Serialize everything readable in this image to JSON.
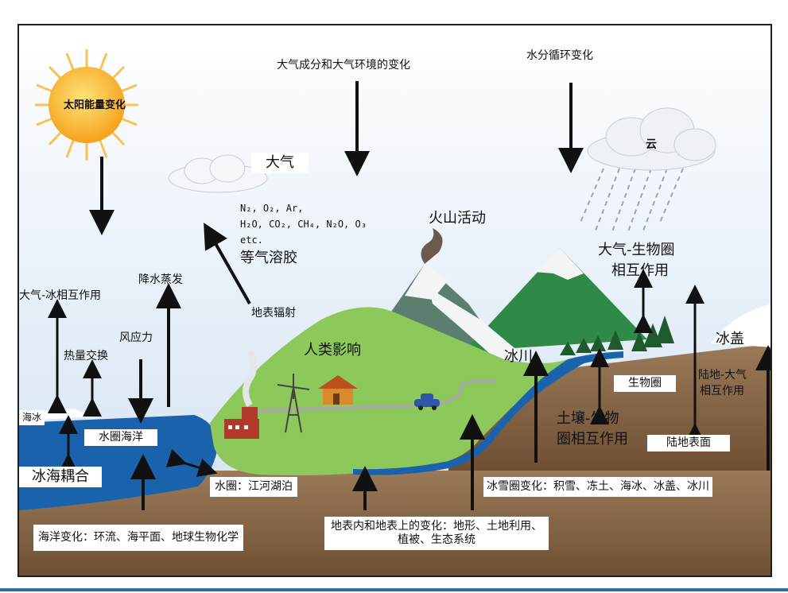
{
  "labels": {
    "sun": "太阳能量变化",
    "atmos_change": "大气成分和大气环境的变化",
    "water_cycle": "水分循环变化",
    "cloud": "云",
    "atmosphere": "大气",
    "gases_line1": "N₂, O₂, Ar,",
    "gases_line2": "H₂O, CO₂, CH₄, N₂O, O₃",
    "gases_line3": "etc.",
    "aerosol": "等气溶胶",
    "volcano": "火山活动",
    "atmos_bio_1": "大气-生物圈",
    "atmos_bio_2": "相互作用",
    "atmos_ice": "大气-冰相互作用",
    "precip": "降水蒸发",
    "surface_rad": "地表辐射",
    "wind": "风应力",
    "heat": "热量交换",
    "human": "人类影响",
    "glacier": "冰川",
    "icecap": "冰盖",
    "biosphere": "生物圈",
    "land_atmos_1": "陆地-大气",
    "land_atmos_2": "相互作用",
    "soil_bio_1": "土壤-生物",
    "soil_bio_2": "圈相互作用",
    "land_surface": "陆地表面",
    "sea_ice": "海冰",
    "ocean": "水圈海洋",
    "ice_ocean": "冰海耦合",
    "rivers": "水圈：江河湖泊",
    "cryo_change": "冰雪圈变化：积雪、冻土、海冰、冰盖、冰川",
    "ocean_change": "海洋变化：环流、海平面、地球生物化学",
    "land_change_1": "地表内和地表上的变化：地形、土地利用、",
    "land_change_2": "植被、生态系统"
  },
  "colors": {
    "sky": "#dbe8f5",
    "ocean": "#1b62ad",
    "land_green": "#8cc85a",
    "soil": "#8c6a4a",
    "mountain": "#2e8b4a",
    "snow": "#ffffff"
  }
}
